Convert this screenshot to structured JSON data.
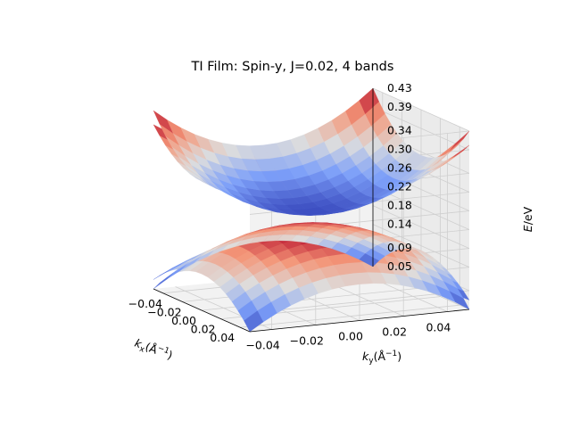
{
  "chart_data": {
    "type": "surface3d",
    "title": "TI Film: Spin-y, J=0.02, 4 bands",
    "xlabel": "k_x(Å^-1)",
    "xlabel_parts": [
      "k",
      "x",
      "(Å",
      "−1",
      ")"
    ],
    "ylabel": "k_y(Å^-1)",
    "ylabel_parts": [
      "k",
      "y",
      "(Å",
      "−1",
      ")"
    ],
    "zlabel": "E/eV",
    "xlim": [
      -0.05,
      0.05
    ],
    "ylim": [
      -0.05,
      0.05
    ],
    "zlim": [
      0.05,
      0.43
    ],
    "x_ticks": [
      "−0.04",
      "−0.02",
      "0.00",
      "0.02",
      "0.04"
    ],
    "y_ticks": [
      "−0.04",
      "−0.02",
      "0.00",
      "0.02",
      "0.04"
    ],
    "z_ticks": [
      "0.05",
      "0.09",
      "0.14",
      "0.18",
      "0.22",
      "0.26",
      "0.30",
      "0.34",
      "0.39",
      "0.43"
    ],
    "colormap": "coolwarm",
    "grid": true,
    "bands": [
      {
        "description": "upper band 1",
        "E_at_origin": 0.235,
        "E_at_corner": 0.43
      },
      {
        "description": "upper band 2",
        "E_at_origin": 0.25,
        "E_at_corner": 0.4
      },
      {
        "description": "lower band 1",
        "E_at_origin": 0.205,
        "E_at_corner": 0.05
      },
      {
        "description": "lower band 2",
        "E_at_origin": 0.19,
        "E_at_corner": 0.07
      }
    ]
  }
}
